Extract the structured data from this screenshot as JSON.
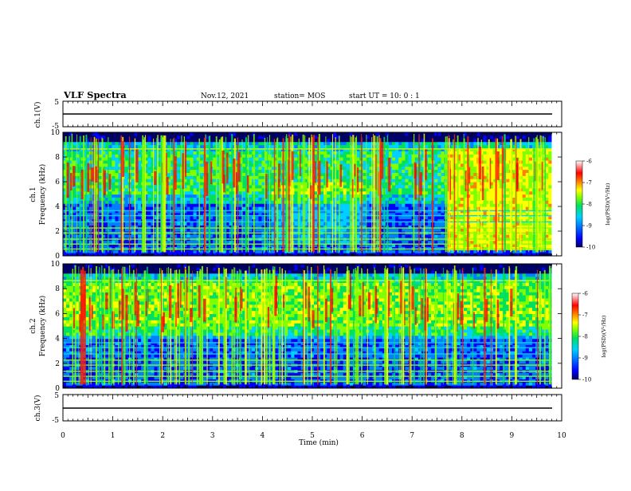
{
  "header": {
    "title": "VLF Spectra",
    "date": "Nov.12, 2021",
    "station": "station= MOS",
    "start": "start  UT =   10: 0  : 1"
  },
  "colors": {
    "colormap": [
      "#000066",
      "#0000ff",
      "#0080ff",
      "#00d0ff",
      "#00e060",
      "#80ff00",
      "#ffff00",
      "#ff8000",
      "#ff0000",
      "#ff9090",
      "#ffffff"
    ],
    "line": "#000000"
  },
  "chart_data": [
    {
      "type": "line",
      "name": "channel-1-waveform",
      "ylabel": "ch.1(V)",
      "ylim": [
        -5,
        5
      ],
      "yticks": [
        5,
        -5
      ],
      "x": [
        0,
        9.8
      ],
      "y": [
        0,
        0
      ]
    },
    {
      "type": "heatmap",
      "name": "channel-1-spectrogram",
      "ylabel_top": "ch.1",
      "ylabel": "Frequency (kHz)",
      "xlim": [
        0,
        10
      ],
      "ylim": [
        0,
        10
      ],
      "yticks": [
        0,
        2,
        4,
        6,
        8,
        10
      ],
      "data_extent_min": 9.8,
      "colorbar": {
        "label": "log(PSD)(V²/Hz)",
        "ticks": [
          -6,
          -7,
          -8,
          -9,
          -10
        ]
      }
    },
    {
      "type": "heatmap",
      "name": "channel-2-spectrogram",
      "ylabel_top": "ch.2",
      "ylabel": "Frequency (kHz)",
      "xlim": [
        0,
        10
      ],
      "ylim": [
        0,
        10
      ],
      "yticks": [
        0,
        2,
        4,
        6,
        8,
        10
      ],
      "data_extent_min": 9.8,
      "colorbar": {
        "label": "log(PSD)(V²/Hz)",
        "ticks": [
          -6,
          -7,
          -8,
          -9,
          -10
        ]
      }
    },
    {
      "type": "line",
      "name": "channel-3-waveform",
      "ylabel": "ch.3(V)",
      "ylim": [
        -5,
        5
      ],
      "yticks": [
        5,
        -5
      ],
      "x": [
        0,
        9.8
      ],
      "y": [
        0,
        0
      ]
    }
  ],
  "xaxis": {
    "label": "Time (min)",
    "ticks": [
      0,
      1,
      2,
      3,
      4,
      5,
      6,
      7,
      8,
      9,
      10
    ]
  }
}
